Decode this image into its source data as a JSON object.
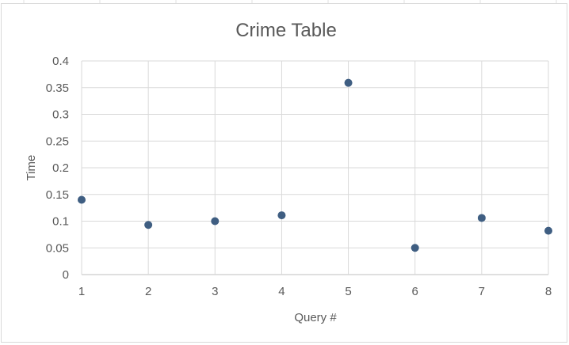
{
  "chart_data": {
    "type": "scatter",
    "title": "Crime Table",
    "xlabel": "Query #",
    "ylabel": "Time",
    "xlim": [
      1,
      8
    ],
    "ylim": [
      0,
      0.4
    ],
    "x_ticks": [
      "1",
      "2",
      "3",
      "4",
      "5",
      "6",
      "7",
      "8"
    ],
    "y_ticks": [
      "0",
      "0.05",
      "0.1",
      "0.15",
      "0.2",
      "0.25",
      "0.3",
      "0.35",
      "0.4"
    ],
    "grid": true,
    "marker_color": "#3f5e82",
    "points": [
      {
        "x": 1,
        "y": 0.14
      },
      {
        "x": 2,
        "y": 0.093
      },
      {
        "x": 3,
        "y": 0.1
      },
      {
        "x": 4,
        "y": 0.111
      },
      {
        "x": 5,
        "y": 0.359
      },
      {
        "x": 6,
        "y": 0.05
      },
      {
        "x": 7,
        "y": 0.106
      },
      {
        "x": 8,
        "y": 0.082
      }
    ]
  }
}
